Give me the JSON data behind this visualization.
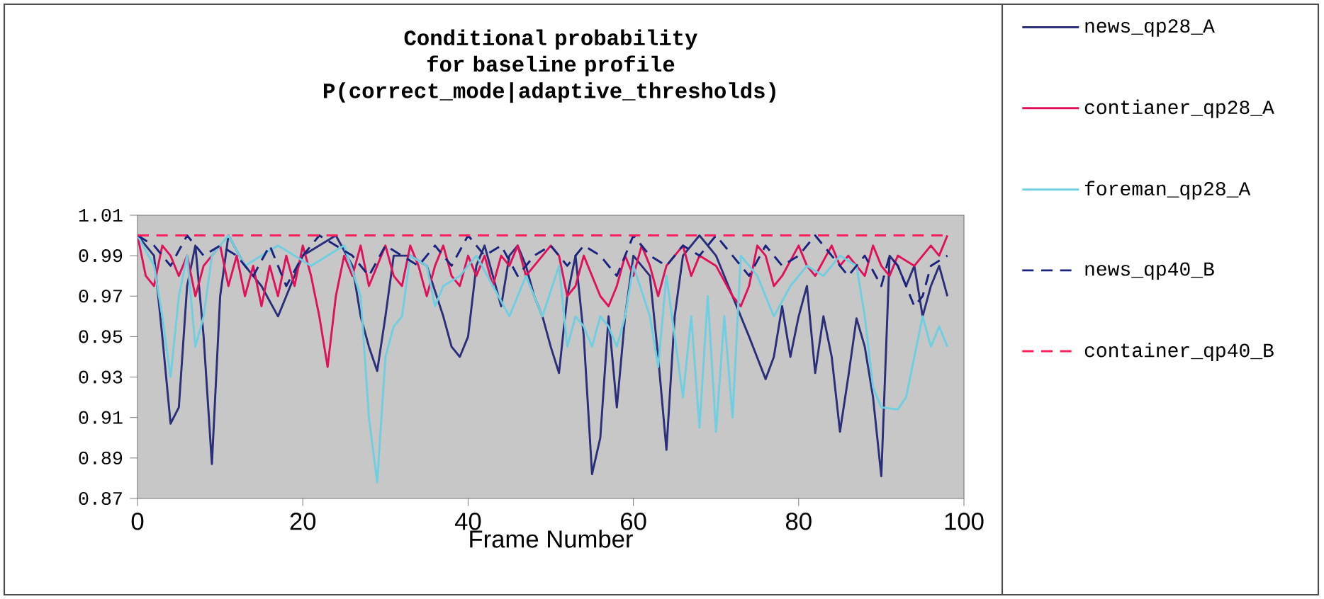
{
  "chart_data": {
    "type": "line",
    "title": "Conditional probability for baseline profile P(correct_mode|adaptive_thresholds)",
    "xlabel": "Frame Number",
    "xlim": [
      0,
      100
    ],
    "ylim": [
      0.87,
      1.01
    ],
    "xticks": [
      0,
      20,
      40,
      60,
      80,
      100
    ],
    "yticks": [
      0.87,
      0.89,
      0.91,
      0.93,
      0.95,
      0.97,
      0.99,
      1.01
    ],
    "legend": "right",
    "series": [
      {
        "name": "news_qp28_A",
        "color": "#2b2f7a",
        "line_style": "solid",
        "x": [
          0,
          1,
          2,
          3,
          4,
          5,
          6,
          7,
          8,
          9,
          10,
          11,
          13,
          15,
          17,
          18,
          20,
          22,
          24,
          26,
          27,
          28,
          29,
          30,
          31,
          33,
          35,
          37,
          38,
          39,
          40,
          41,
          42,
          43,
          44,
          45,
          46,
          47,
          48,
          49,
          50,
          51,
          52,
          53,
          54,
          55,
          56,
          57,
          58,
          59,
          60,
          62,
          63,
          64,
          65,
          66,
          68,
          70,
          72,
          74,
          76,
          77,
          78,
          79,
          80,
          81,
          82,
          83,
          84,
          85,
          86,
          87,
          88,
          89,
          90,
          91,
          92,
          93,
          94,
          95,
          96,
          97,
          98
        ],
        "values": [
          1.0,
          0.995,
          0.99,
          0.95,
          0.907,
          0.915,
          0.975,
          0.995,
          0.95,
          0.887,
          0.97,
          1.0,
          0.985,
          0.975,
          0.96,
          0.97,
          0.99,
          0.995,
          1.0,
          0.985,
          0.96,
          0.945,
          0.933,
          0.96,
          0.99,
          0.99,
          0.985,
          0.96,
          0.945,
          0.94,
          0.95,
          0.985,
          0.995,
          0.98,
          0.965,
          0.99,
          0.995,
          0.985,
          0.97,
          0.96,
          0.945,
          0.932,
          0.97,
          0.99,
          0.95,
          0.882,
          0.9,
          0.96,
          0.915,
          0.96,
          0.99,
          0.98,
          0.94,
          0.894,
          0.96,
          0.99,
          1.0,
          0.99,
          0.97,
          0.95,
          0.929,
          0.94,
          0.965,
          0.94,
          0.96,
          0.975,
          0.932,
          0.96,
          0.94,
          0.903,
          0.93,
          0.959,
          0.945,
          0.92,
          0.881,
          0.99,
          0.985,
          0.975,
          0.985,
          0.96,
          0.975,
          0.985,
          0.97
        ]
      },
      {
        "name": "contianer_qp28_A",
        "color": "#e0105a",
        "line_style": "solid",
        "x": [
          0,
          1,
          2,
          3,
          4,
          5,
          6,
          7,
          8,
          10,
          11,
          12,
          13,
          14,
          15,
          16,
          17,
          18,
          19,
          20,
          21,
          22,
          23,
          24,
          25,
          26,
          27,
          28,
          30,
          31,
          32,
          33,
          34,
          35,
          36,
          37,
          38,
          39,
          40,
          41,
          42,
          43,
          44,
          45,
          46,
          47,
          48,
          50,
          51,
          52,
          53,
          54,
          56,
          57,
          58,
          59,
          60,
          61,
          62,
          63,
          64,
          66,
          67,
          68,
          70,
          72,
          73,
          74,
          75,
          76,
          77,
          78,
          80,
          81,
          82,
          84,
          85,
          86,
          88,
          89,
          90,
          91,
          92,
          94,
          96,
          97,
          98
        ],
        "values": [
          1.0,
          0.98,
          0.975,
          0.995,
          0.99,
          0.98,
          0.99,
          0.97,
          0.985,
          0.995,
          0.975,
          0.99,
          0.97,
          0.985,
          0.965,
          0.985,
          0.97,
          0.99,
          0.975,
          0.995,
          0.98,
          0.96,
          0.935,
          0.97,
          0.99,
          0.98,
          0.995,
          0.975,
          0.995,
          0.98,
          0.975,
          0.995,
          0.985,
          0.97,
          0.985,
          0.995,
          0.98,
          0.975,
          0.99,
          0.98,
          0.99,
          0.975,
          0.99,
          0.985,
          0.995,
          0.98,
          0.985,
          0.995,
          0.99,
          0.97,
          0.975,
          0.99,
          0.97,
          0.965,
          0.975,
          0.99,
          0.98,
          0.995,
          0.985,
          0.97,
          0.985,
          0.995,
          0.98,
          0.99,
          0.985,
          0.97,
          0.965,
          0.975,
          0.995,
          0.99,
          0.975,
          0.98,
          0.995,
          0.985,
          0.98,
          0.995,
          0.985,
          0.99,
          0.98,
          0.995,
          0.985,
          0.98,
          0.99,
          0.985,
          0.995,
          0.99,
          1.0
        ]
      },
      {
        "name": "foreman_qp28_A",
        "color": "#6fcfe0",
        "line_style": "solid",
        "x": [
          0,
          2,
          3,
          4,
          5,
          6,
          7,
          8,
          9,
          11,
          13,
          15,
          17,
          19,
          21,
          23,
          25,
          27,
          28,
          29,
          30,
          31,
          32,
          33,
          35,
          36,
          37,
          39,
          41,
          43,
          45,
          47,
          49,
          51,
          52,
          53,
          54,
          55,
          56,
          57,
          58,
          59,
          60,
          62,
          63,
          64,
          65,
          66,
          67,
          68,
          69,
          70,
          71,
          72,
          73,
          75,
          77,
          79,
          81,
          83,
          85,
          87,
          88,
          89,
          90,
          92,
          93,
          94,
          95,
          96,
          97,
          98
        ],
        "values": [
          1.0,
          0.985,
          0.96,
          0.93,
          0.97,
          0.99,
          0.945,
          0.96,
          0.99,
          1.0,
          0.985,
          0.99,
          0.995,
          0.99,
          0.985,
          0.99,
          0.995,
          0.97,
          0.91,
          0.878,
          0.94,
          0.955,
          0.96,
          0.99,
          0.985,
          0.965,
          0.975,
          0.98,
          0.99,
          0.975,
          0.96,
          0.98,
          0.96,
          0.985,
          0.945,
          0.96,
          0.955,
          0.945,
          0.96,
          0.955,
          0.945,
          0.96,
          0.985,
          0.96,
          0.935,
          0.98,
          0.95,
          0.92,
          0.96,
          0.905,
          0.97,
          0.903,
          0.96,
          0.91,
          0.99,
          0.98,
          0.96,
          0.975,
          0.985,
          0.98,
          0.99,
          0.985,
          0.96,
          0.925,
          0.915,
          0.914,
          0.92,
          0.94,
          0.96,
          0.945,
          0.955,
          0.945
        ]
      },
      {
        "name": "news_qp40_B",
        "color": "#1a237e",
        "line_style": "dashed",
        "x": [
          0,
          2,
          4,
          6,
          8,
          10,
          12,
          14,
          16,
          18,
          20,
          22,
          24,
          26,
          28,
          30,
          32,
          34,
          36,
          38,
          40,
          42,
          44,
          46,
          48,
          50,
          52,
          54,
          56,
          58,
          60,
          62,
          64,
          66,
          68,
          70,
          72,
          74,
          76,
          78,
          80,
          82,
          84,
          86,
          88,
          90,
          91,
          92,
          94,
          95,
          96,
          98
        ],
        "values": [
          1.0,
          0.995,
          0.985,
          1.0,
          0.99,
          0.995,
          0.99,
          0.98,
          0.995,
          0.975,
          0.99,
          1.0,
          0.995,
          0.99,
          0.98,
          0.995,
          0.99,
          0.985,
          0.995,
          0.985,
          1.0,
          0.99,
          0.995,
          0.98,
          0.99,
          0.995,
          0.985,
          0.995,
          0.99,
          0.98,
          1.0,
          0.99,
          0.985,
          0.995,
          0.99,
          1.0,
          0.99,
          0.98,
          0.995,
          0.985,
          0.99,
          1.0,
          0.99,
          0.98,
          0.99,
          0.975,
          0.99,
          0.985,
          0.965,
          0.97,
          0.985,
          0.99
        ]
      },
      {
        "name": "container_qp40_B",
        "color": "#ff2060",
        "line_style": "dashed",
        "x": [
          0,
          10,
          20,
          30,
          40,
          50,
          60,
          70,
          80,
          90,
          98
        ],
        "values": [
          1.0,
          1.0,
          1.0,
          1.0,
          1.0,
          1.0,
          1.0,
          1.0,
          1.0,
          1.0,
          1.0
        ]
      }
    ]
  }
}
